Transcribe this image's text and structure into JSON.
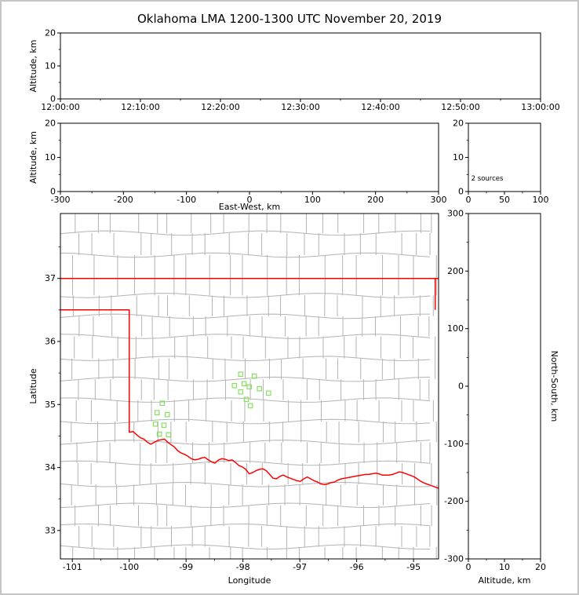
{
  "figure": {
    "title": "Oklahoma LMA 1200-1300 UTC November 20, 2019",
    "background": "#ffffff",
    "border_color": "#c5c5c5",
    "axis_color": "#000000",
    "county_line_color": "#b3b3b3",
    "state_border_color": "#ff0000",
    "station_marker_color": "#85e061"
  },
  "chart_data": [
    {
      "id": "time_height",
      "type": "scatter",
      "xlabel": "",
      "ylabel": "Altitude, km",
      "xlim": [
        0,
        3600
      ],
      "ylim": [
        0,
        20
      ],
      "xticks": [
        {
          "v": 0,
          "label": "12:00:00"
        },
        {
          "v": 600,
          "label": "12:10:00"
        },
        {
          "v": 1200,
          "label": "12:20:00"
        },
        {
          "v": 1800,
          "label": "12:30:00"
        },
        {
          "v": 2400,
          "label": "12:40:00"
        },
        {
          "v": 3000,
          "label": "12:50:00"
        },
        {
          "v": 3600,
          "label": "13:00:00"
        }
      ],
      "xminor": [
        300,
        900,
        1500,
        2100,
        2700,
        3300
      ],
      "yticks": [
        {
          "v": 0,
          "label": "0"
        },
        {
          "v": 10,
          "label": "10"
        },
        {
          "v": 20,
          "label": "20"
        }
      ],
      "yminor": [
        5,
        15
      ],
      "points": []
    },
    {
      "id": "ew_height",
      "type": "scatter",
      "xlabel": "East-West, km",
      "ylabel": "Altitude, km",
      "xlim": [
        -300,
        300
      ],
      "ylim": [
        0,
        20
      ],
      "xticks": [
        {
          "v": -300,
          "label": "-300"
        },
        {
          "v": -200,
          "label": "-200"
        },
        {
          "v": -100,
          "label": "-100"
        },
        {
          "v": 0,
          "label": "0"
        },
        {
          "v": 100,
          "label": "100"
        },
        {
          "v": 200,
          "label": "200"
        },
        {
          "v": 300,
          "label": "300"
        }
      ],
      "xminor": [
        -250,
        -150,
        -50,
        50,
        150,
        250
      ],
      "yticks": [
        {
          "v": 0,
          "label": "0"
        },
        {
          "v": 10,
          "label": "10"
        },
        {
          "v": 20,
          "label": "20"
        }
      ],
      "yminor": [
        5,
        15
      ],
      "points": []
    },
    {
      "id": "alt_histogram",
      "type": "histogram",
      "xlabel": "",
      "ylabel": "",
      "xlim": [
        0,
        100
      ],
      "ylim": [
        0,
        20
      ],
      "xticks": [
        {
          "v": 0,
          "label": "0"
        },
        {
          "v": 50,
          "label": "50"
        },
        {
          "v": 100,
          "label": "100"
        }
      ],
      "xminor": [
        25,
        75
      ],
      "yticks": [
        {
          "v": 0,
          "label": "0"
        },
        {
          "v": 10,
          "label": "10"
        },
        {
          "v": 20,
          "label": "20"
        }
      ],
      "yminor": [
        5,
        15
      ],
      "annotation": {
        "text": "2 sources",
        "x": 4,
        "y": 3.2
      },
      "values": []
    },
    {
      "id": "plan_view",
      "type": "map-scatter",
      "xlabel": "Longitude",
      "ylabel": "Latitude",
      "xlim": [
        -101.21,
        -94.56
      ],
      "ylim": [
        32.55,
        38.03
      ],
      "xticks": [
        {
          "v": -101,
          "label": "-101"
        },
        {
          "v": -100,
          "label": "-100"
        },
        {
          "v": -99,
          "label": "-99"
        },
        {
          "v": -98,
          "label": "-98"
        },
        {
          "v": -97,
          "label": "-97"
        },
        {
          "v": -96,
          "label": "-96"
        },
        {
          "v": -95,
          "label": "-95"
        }
      ],
      "xminor": [
        -100.5,
        -99.5,
        -98.5,
        -97.5,
        -96.5,
        -95.5
      ],
      "yticks": [
        {
          "v": 33,
          "label": "33"
        },
        {
          "v": 34,
          "label": "34"
        },
        {
          "v": 35,
          "label": "35"
        },
        {
          "v": 36,
          "label": "36"
        },
        {
          "v": 37,
          "label": "37"
        }
      ],
      "yminor": [
        33.5,
        34.5,
        35.5,
        36.5,
        37.5
      ],
      "stations": [
        [
          -99.42,
          35.02
        ],
        [
          -99.51,
          34.87
        ],
        [
          -99.33,
          34.84
        ],
        [
          -99.54,
          34.69
        ],
        [
          -99.39,
          34.67
        ],
        [
          -99.47,
          34.53
        ],
        [
          -99.31,
          34.52
        ],
        [
          -98.04,
          35.48
        ],
        [
          -97.8,
          35.45
        ],
        [
          -97.98,
          35.33
        ],
        [
          -98.15,
          35.3
        ],
        [
          -97.89,
          35.28
        ],
        [
          -97.71,
          35.25
        ],
        [
          -98.04,
          35.2
        ],
        [
          -97.55,
          35.18
        ],
        [
          -97.94,
          35.08
        ],
        [
          -97.87,
          34.98
        ]
      ],
      "state_boundary": [
        [
          [
            -101.21,
            37.0
          ],
          [
            -94.56,
            37.0
          ]
        ],
        [
          [
            -94.62,
            37.0
          ],
          [
            -94.62,
            36.5
          ]
        ],
        [
          [
            -101.21,
            36.5
          ],
          [
            -100.0,
            36.5
          ],
          [
            -100.0,
            34.56
          ],
          [
            -99.93,
            34.57
          ],
          [
            -99.87,
            34.52
          ],
          [
            -99.8,
            34.47
          ],
          [
            -99.74,
            34.45
          ],
          [
            -99.68,
            34.4
          ],
          [
            -99.62,
            34.37
          ],
          [
            -99.56,
            34.4
          ],
          [
            -99.5,
            34.43
          ],
          [
            -99.44,
            34.44
          ],
          [
            -99.38,
            34.45
          ],
          [
            -99.32,
            34.4
          ],
          [
            -99.26,
            34.36
          ],
          [
            -99.21,
            34.33
          ],
          [
            -99.15,
            34.27
          ],
          [
            -99.09,
            34.23
          ],
          [
            -99.03,
            34.21
          ],
          [
            -98.97,
            34.18
          ],
          [
            -98.91,
            34.14
          ],
          [
            -98.85,
            34.12
          ],
          [
            -98.79,
            34.13
          ],
          [
            -98.73,
            34.15
          ],
          [
            -98.67,
            34.16
          ],
          [
            -98.61,
            34.12
          ],
          [
            -98.55,
            34.09
          ],
          [
            -98.49,
            34.07
          ],
          [
            -98.43,
            34.12
          ],
          [
            -98.37,
            34.14
          ],
          [
            -98.31,
            34.13
          ],
          [
            -98.25,
            34.11
          ],
          [
            -98.19,
            34.12
          ],
          [
            -98.13,
            34.08
          ],
          [
            -98.07,
            34.03
          ],
          [
            -98.01,
            34.01
          ],
          [
            -97.95,
            33.97
          ],
          [
            -97.89,
            33.9
          ],
          [
            -97.83,
            33.92
          ],
          [
            -97.77,
            33.95
          ],
          [
            -97.71,
            33.97
          ],
          [
            -97.65,
            33.98
          ],
          [
            -97.59,
            33.95
          ],
          [
            -97.53,
            33.89
          ],
          [
            -97.47,
            33.83
          ],
          [
            -97.41,
            33.82
          ],
          [
            -97.35,
            33.86
          ],
          [
            -97.29,
            33.88
          ],
          [
            -97.23,
            33.85
          ],
          [
            -97.17,
            33.83
          ],
          [
            -97.11,
            33.81
          ],
          [
            -97.05,
            33.79
          ],
          [
            -96.99,
            33.78
          ],
          [
            -96.93,
            33.82
          ],
          [
            -96.87,
            33.85
          ],
          [
            -96.81,
            33.82
          ],
          [
            -96.75,
            33.79
          ],
          [
            -96.69,
            33.77
          ],
          [
            -96.63,
            33.74
          ],
          [
            -96.57,
            33.73
          ],
          [
            -96.51,
            33.74
          ],
          [
            -96.45,
            33.76
          ],
          [
            -96.39,
            33.77
          ],
          [
            -96.33,
            33.8
          ],
          [
            -96.27,
            33.82
          ],
          [
            -96.21,
            33.83
          ],
          [
            -96.15,
            33.84
          ],
          [
            -96.09,
            33.85
          ],
          [
            -96.03,
            33.86
          ],
          [
            -95.97,
            33.87
          ],
          [
            -95.91,
            33.88
          ],
          [
            -95.85,
            33.89
          ],
          [
            -95.79,
            33.89
          ],
          [
            -95.73,
            33.9
          ],
          [
            -95.67,
            33.91
          ],
          [
            -95.61,
            33.9
          ],
          [
            -95.55,
            33.88
          ],
          [
            -95.49,
            33.88
          ],
          [
            -95.43,
            33.88
          ],
          [
            -95.37,
            33.89
          ],
          [
            -95.31,
            33.91
          ],
          [
            -95.25,
            33.93
          ],
          [
            -95.19,
            33.92
          ],
          [
            -95.13,
            33.9
          ],
          [
            -95.07,
            33.88
          ],
          [
            -95.01,
            33.86
          ],
          [
            -94.95,
            33.83
          ],
          [
            -94.89,
            33.79
          ],
          [
            -94.83,
            33.76
          ],
          [
            -94.77,
            33.74
          ],
          [
            -94.71,
            33.72
          ],
          [
            -94.65,
            33.7
          ],
          [
            -94.56,
            33.67
          ]
        ]
      ],
      "county_lons": [
        -100.95,
        -100.6,
        -100.27,
        -99.85,
        -99.55,
        -99.27,
        -98.94,
        -98.6,
        -98.27,
        -97.94,
        -97.6,
        -97.27,
        -96.94,
        -96.6,
        -96.27,
        -95.94,
        -95.6,
        -95.27,
        -94.94,
        -94.66
      ],
      "county_lats": [
        37.72,
        37.37,
        36.73,
        36.4,
        36.08,
        35.73,
        35.4,
        35.07,
        34.73,
        34.4,
        34.07,
        33.73,
        33.4,
        33.07,
        32.74
      ]
    },
    {
      "id": "ns_height",
      "type": "scatter",
      "xlabel": "Altitude, km",
      "ylabel_right": "North-South, km",
      "xlim": [
        0,
        20
      ],
      "ylim": [
        -300,
        300
      ],
      "xticks": [
        {
          "v": 0,
          "label": "0"
        },
        {
          "v": 10,
          "label": "10"
        },
        {
          "v": 20,
          "label": "20"
        }
      ],
      "xminor": [
        5,
        15
      ],
      "yticks": [
        {
          "v": 300,
          "label": "300"
        },
        {
          "v": 200,
          "label": "200"
        },
        {
          "v": 100,
          "label": "100"
        },
        {
          "v": 0,
          "label": "0"
        },
        {
          "v": -100,
          "label": "-100"
        },
        {
          "v": -200,
          "label": "-200"
        },
        {
          "v": -300,
          "label": "-300"
        }
      ],
      "yminor": [
        -250,
        -150,
        -50,
        50,
        150,
        250
      ],
      "points": []
    }
  ]
}
